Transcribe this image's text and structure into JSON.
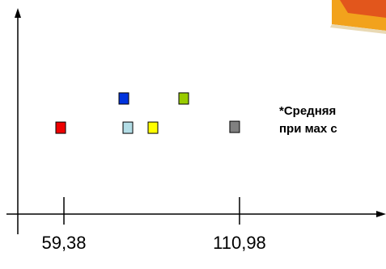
{
  "chart_data": {
    "type": "scatter",
    "x": [
      58.43,
      76.98,
      78.17,
      85.54,
      94.58,
      109.55
    ],
    "values": [
      4.26,
      5.7,
      4.26,
      4.26,
      5.7,
      4.3
    ],
    "colors": [
      "#ee0000",
      "#0033dd",
      "#b3dde6",
      "#ffff00",
      "#99cc00",
      "#808080"
    ],
    "xlim": [
      42.97,
      154.03
    ],
    "xticks": [
      {
        "value": 59.38,
        "label": "59,38"
      },
      {
        "value": 110.98,
        "label": "110,98"
      }
    ],
    "ylim": [
      0,
      10
    ],
    "annotations": [
      "*Средняя",
      "при мах с"
    ]
  }
}
